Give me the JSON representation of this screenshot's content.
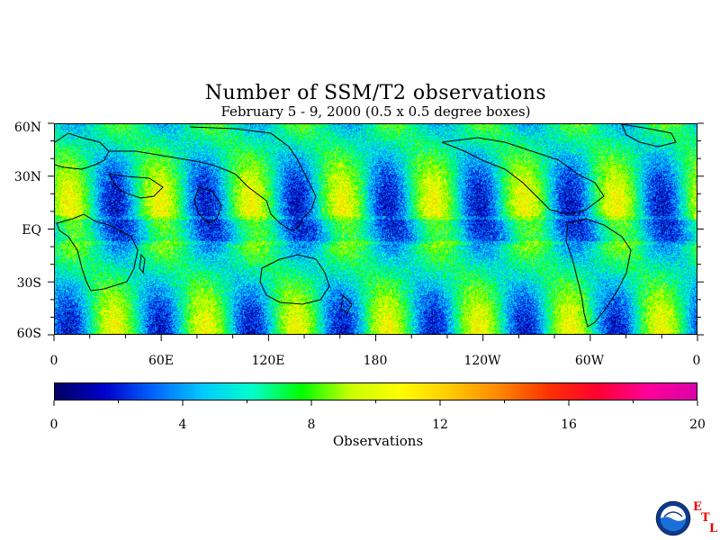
{
  "title": "Number of SSM/T2 observations",
  "subtitle": "February 5 - 9, 2000 (0.5 x 0.5 degree boxes)",
  "map": {
    "latitude_labels": [
      "60N",
      "30N",
      "EQ",
      "30S",
      "60S"
    ],
    "longitude_labels": [
      "0",
      "60E",
      "120E",
      "180",
      "120W",
      "60W",
      "0"
    ],
    "lat_range": [
      -60,
      60
    ],
    "lon_range": [
      0,
      360
    ],
    "grid_resolution_degrees": 0.5,
    "swath_pattern": "diagonal ascending/descending orbit bands, higher counts at swath overlaps"
  },
  "colorbar": {
    "title": "Observations",
    "tick_labels": [
      "0",
      "4",
      "8",
      "12",
      "16",
      "20"
    ],
    "range": [
      0,
      20
    ],
    "colors": [
      "#000066",
      "#0000cc",
      "#0066ff",
      "#00ccff",
      "#00ffcc",
      "#00ff00",
      "#ccff00",
      "#ffff00",
      "#ffcc00",
      "#ff8800",
      "#ff3300",
      "#ff0033",
      "#ff0099",
      "#dd00aa"
    ]
  },
  "logo": {
    "agency": "NOAA",
    "letters": [
      "E",
      "T",
      "L"
    ],
    "icon": "noaa-logo-icon",
    "letter_color": "#dd0000"
  }
}
